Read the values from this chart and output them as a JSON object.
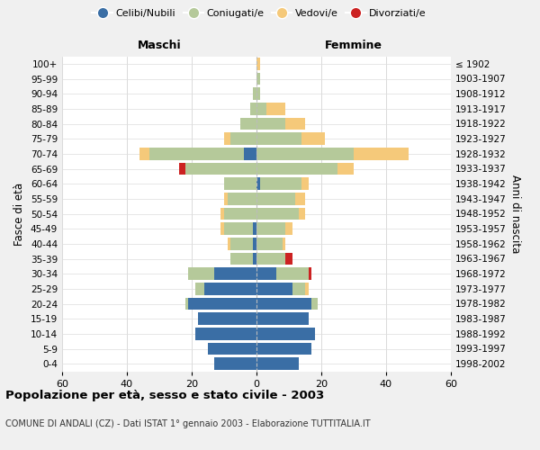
{
  "age_groups": [
    "0-4",
    "5-9",
    "10-14",
    "15-19",
    "20-24",
    "25-29",
    "30-34",
    "35-39",
    "40-44",
    "45-49",
    "50-54",
    "55-59",
    "60-64",
    "65-69",
    "70-74",
    "75-79",
    "80-84",
    "85-89",
    "90-94",
    "95-99",
    "100+"
  ],
  "birth_years": [
    "1998-2002",
    "1993-1997",
    "1988-1992",
    "1983-1987",
    "1978-1982",
    "1973-1977",
    "1968-1972",
    "1963-1967",
    "1958-1962",
    "1953-1957",
    "1948-1952",
    "1943-1947",
    "1938-1942",
    "1933-1937",
    "1928-1932",
    "1923-1927",
    "1918-1922",
    "1913-1917",
    "1908-1912",
    "1903-1907",
    "≤ 1902"
  ],
  "colors": {
    "celibi": "#3a6ea5",
    "coniugati": "#b5c99a",
    "vedovi": "#f5c97a",
    "divorziati": "#cc2222"
  },
  "males": {
    "celibi": [
      13,
      15,
      19,
      18,
      21,
      16,
      13,
      1,
      1,
      1,
      0,
      0,
      0,
      0,
      4,
      0,
      0,
      0,
      0,
      0,
      0
    ],
    "coniugati": [
      0,
      0,
      0,
      0,
      1,
      3,
      8,
      7,
      7,
      9,
      10,
      9,
      10,
      22,
      29,
      8,
      5,
      2,
      1,
      0,
      0
    ],
    "vedovi": [
      0,
      0,
      0,
      0,
      0,
      0,
      0,
      0,
      1,
      1,
      1,
      1,
      0,
      0,
      3,
      2,
      0,
      0,
      0,
      0,
      0
    ],
    "divorziati": [
      0,
      0,
      0,
      0,
      0,
      0,
      0,
      0,
      0,
      0,
      0,
      0,
      0,
      2,
      0,
      0,
      0,
      0,
      0,
      0,
      0
    ]
  },
  "females": {
    "celibi": [
      13,
      17,
      18,
      16,
      17,
      11,
      6,
      0,
      0,
      0,
      0,
      0,
      1,
      0,
      0,
      0,
      0,
      0,
      0,
      0,
      0
    ],
    "coniugati": [
      0,
      0,
      0,
      0,
      2,
      4,
      10,
      9,
      8,
      9,
      13,
      12,
      13,
      25,
      30,
      14,
      9,
      3,
      1,
      1,
      0
    ],
    "vedovi": [
      0,
      0,
      0,
      0,
      0,
      1,
      0,
      0,
      1,
      2,
      2,
      3,
      2,
      5,
      17,
      7,
      6,
      6,
      0,
      0,
      1
    ],
    "divorziati": [
      0,
      0,
      0,
      0,
      0,
      0,
      1,
      2,
      0,
      0,
      0,
      0,
      0,
      0,
      0,
      0,
      0,
      0,
      0,
      0,
      0
    ]
  },
  "xlim": 60,
  "title": "Popolazione per età, sesso e stato civile - 2003",
  "subtitle": "COMUNE DI ANDALI (CZ) - Dati ISTAT 1° gennaio 2003 - Elaborazione TUTTITALIA.IT",
  "ylabel_left": "Fasce di età",
  "ylabel_right": "Anni di nascita",
  "xlabel_maschi": "Maschi",
  "xlabel_femmine": "Femmine",
  "legend_labels": [
    "Celibi/Nubili",
    "Coniugati/e",
    "Vedovi/e",
    "Divorziati/e"
  ],
  "bg_color": "#f0f0f0",
  "plot_bg": "#ffffff"
}
